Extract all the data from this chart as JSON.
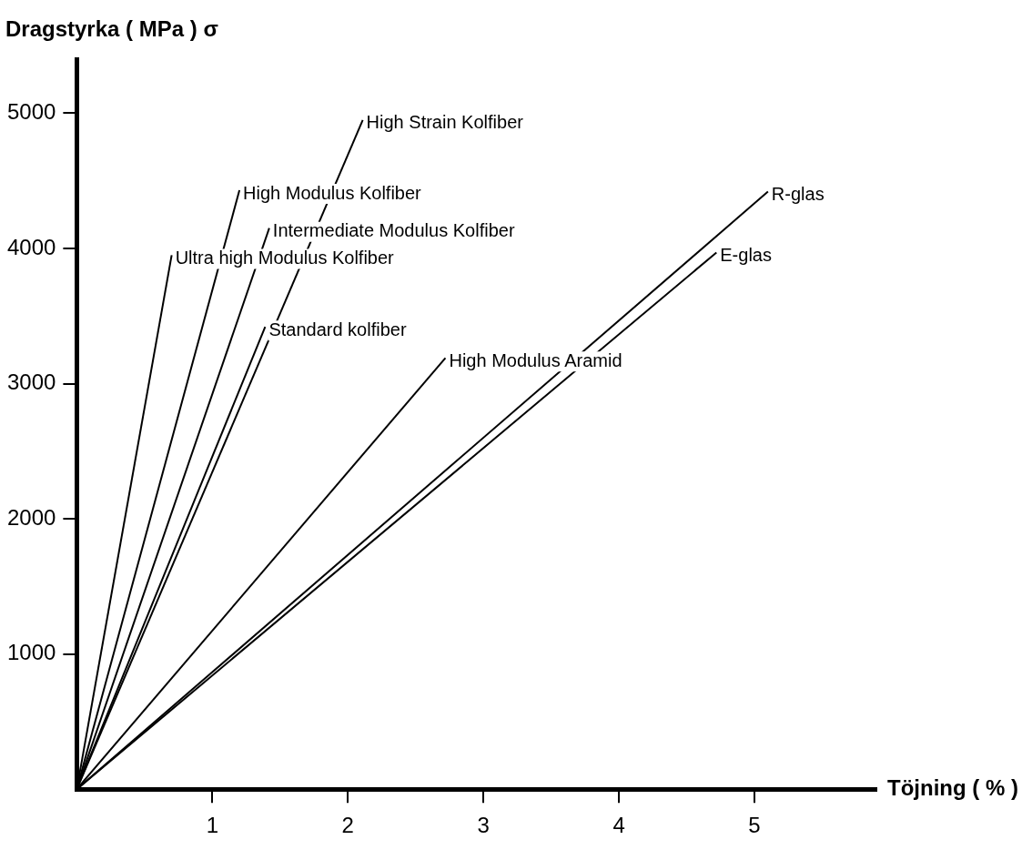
{
  "chart_data": {
    "type": "line",
    "xlabel": "Töjning ( % )",
    "ylabel": "Dragstyrka ( MPa ) σ",
    "xlim": [
      0,
      5.9
    ],
    "ylim": [
      0,
      5400
    ],
    "xticks": [
      1,
      2,
      3,
      4,
      5
    ],
    "yticks": [
      1000,
      2000,
      3000,
      4000,
      5000
    ],
    "grid": false,
    "legend": false,
    "marker": "none",
    "line_style": "solid",
    "series": [
      {
        "name": "Ultra high Modulus Kolfiber",
        "color": "#000000",
        "x": [
          0,
          0.7
        ],
        "values": [
          0,
          3950
        ]
      },
      {
        "name": "High Modulus Kolfiber",
        "color": "#000000",
        "x": [
          0,
          1.2
        ],
        "values": [
          0,
          4430
        ]
      },
      {
        "name": "Intermediate Modulus Kolfiber",
        "color": "#000000",
        "x": [
          0,
          1.42
        ],
        "values": [
          0,
          4150
        ]
      },
      {
        "name": "Standard kolfiber",
        "color": "#000000",
        "x": [
          0,
          1.39
        ],
        "values": [
          0,
          3420
        ]
      },
      {
        "name": "High Strain Kolfiber",
        "color": "#000000",
        "x": [
          0,
          2.11
        ],
        "values": [
          0,
          4950
        ]
      },
      {
        "name": "High Modulus Aramid",
        "color": "#000000",
        "x": [
          0,
          2.72
        ],
        "values": [
          0,
          3190
        ]
      },
      {
        "name": "R-glas",
        "color": "#000000",
        "x": [
          0,
          5.1
        ],
        "values": [
          0,
          4420
        ]
      },
      {
        "name": "E-glas",
        "color": "#000000",
        "x": [
          0,
          4.72
        ],
        "values": [
          0,
          3970
        ]
      }
    ]
  }
}
